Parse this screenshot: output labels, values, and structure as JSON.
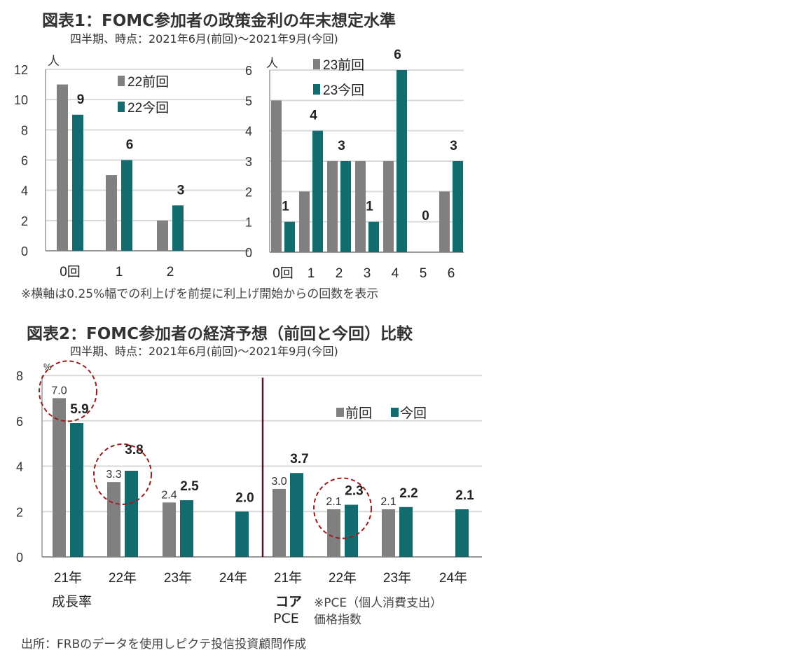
{
  "figure1": {
    "title": "図表1：FOMC参加者の政策金利の年末想定水準",
    "subtitle": "四半期、時点：2021年6月(前回)～2021年9月(今回)",
    "note": "※横軸は0.25%幅での利上げを前提に利上げ開始からの回数を表示"
  },
  "figure2": {
    "title": "図表2：FOMC参加者の経済予想（前回と今回）比較",
    "subtitle": "四半期、時点：2021年6月(前回)～2021年9月(今回)",
    "group_label_growth": "成長率",
    "group_label_pce": [
      "コア",
      "PCE"
    ],
    "pce_note": [
      "※PCE（個人消費支出）",
      "価格指数"
    ]
  },
  "source": "出所：FRBのデータを使用しピクテ投信投資顧問作成",
  "colors": {
    "previous": "#808080",
    "current": "#136b6f",
    "highlight": "#9b1c1c",
    "divider": "#5a1030"
  },
  "chart_data": [
    {
      "type": "bar",
      "unit": "人",
      "categories": [
        "0回",
        "1",
        "2"
      ],
      "series": [
        {
          "name": "22前回",
          "values": [
            11,
            5,
            2
          ]
        },
        {
          "name": "22今回",
          "values": [
            9,
            6,
            3
          ]
        }
      ],
      "data_labels": [
        "9",
        "6",
        "3"
      ],
      "yticks": [
        "0",
        "2",
        "4",
        "6",
        "8",
        "10",
        "12"
      ],
      "ylim": [
        0,
        12
      ],
      "grid": true,
      "legend": "top-right"
    },
    {
      "type": "bar",
      "unit": "人",
      "categories": [
        "0回",
        "1",
        "2",
        "3",
        "4",
        "5",
        "6"
      ],
      "series": [
        {
          "name": "23前回",
          "values": [
            5,
            2,
            3,
            3,
            3,
            0,
            2
          ]
        },
        {
          "name": "23今回",
          "values": [
            1,
            4,
            3,
            1,
            6,
            0,
            3
          ]
        }
      ],
      "data_labels": [
        "1",
        "4",
        "3",
        "1",
        "6",
        "0",
        "3"
      ],
      "yticks": [
        "0",
        "1",
        "2",
        "3",
        "4",
        "5",
        "6"
      ],
      "ylim": [
        0,
        6
      ],
      "grid": true,
      "legend": "top"
    },
    {
      "type": "bar",
      "unit": "%",
      "categories": [
        "21年",
        "22年",
        "23年",
        "24年",
        "21年",
        "22年",
        "23年",
        "24年"
      ],
      "series": [
        {
          "name": "前回",
          "values": [
            7.0,
            3.3,
            2.4,
            null,
            3.0,
            2.1,
            2.1,
            null
          ]
        },
        {
          "name": "今回",
          "values": [
            5.9,
            3.8,
            2.5,
            2.0,
            3.7,
            2.3,
            2.2,
            2.1
          ]
        }
      ],
      "prev_labels": [
        "7.0",
        "3.3",
        "2.4",
        "",
        "3.0",
        "2.1",
        "2.1",
        ""
      ],
      "curr_labels": [
        "5.9",
        "3.8",
        "2.5",
        "2.0",
        "3.7",
        "2.3",
        "2.2",
        "2.1"
      ],
      "highlighted": [
        0,
        1,
        5
      ],
      "yticks": [
        "0",
        "2",
        "4",
        "6",
        "8"
      ],
      "ylim": [
        0,
        8
      ],
      "grid": true,
      "legend": "top-right"
    }
  ]
}
